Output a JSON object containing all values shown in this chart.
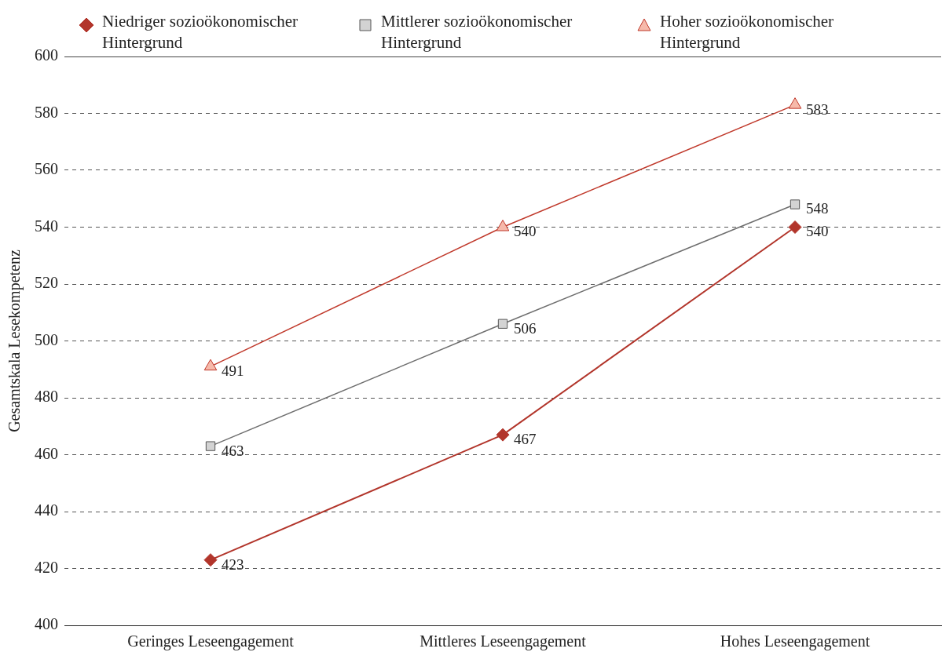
{
  "chart_data": {
    "type": "line",
    "ylabel": "Gesamtskala Lesekompetenz",
    "categories": [
      "Geringes Leseengagement",
      "Mittleres Leseengagement",
      "Hohes Leseengagement"
    ],
    "series": [
      {
        "name": "Niedriger sozioökonomischer Hintergrund",
        "color": "#b2352b",
        "marker": "diamond",
        "values": [
          423,
          467,
          540
        ]
      },
      {
        "name": "Mittlerer sozioökonomischer Hintergrund",
        "color": "#6e6e6e",
        "marker": "square",
        "values": [
          463,
          506,
          548
        ]
      },
      {
        "name": "Hoher sozioökonomischer Hintergrund",
        "color": "#c0392b",
        "marker": "triangle",
        "values": [
          491,
          540,
          583
        ]
      }
    ],
    "ylim": [
      400,
      600
    ],
    "yticks": [
      400,
      420,
      440,
      460,
      480,
      500,
      520,
      540,
      560,
      580,
      600
    ],
    "grid": "y",
    "legend": "top left",
    "data_labels": true
  }
}
